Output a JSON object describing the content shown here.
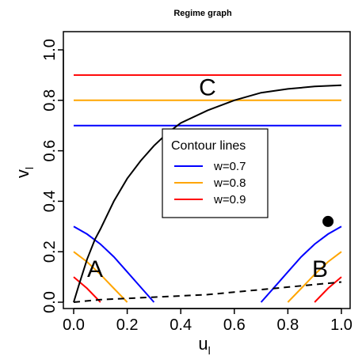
{
  "chart_data": {
    "type": "line",
    "title": "Regime graph",
    "xlabel": "u",
    "xlabel_sub": "l",
    "ylabel": "v",
    "ylabel_sub": "l",
    "xlim": [
      0,
      1
    ],
    "ylim": [
      0,
      1
    ],
    "x_ticks": [
      "0.0",
      "0.2",
      "0.4",
      "0.6",
      "0.8",
      "1.0"
    ],
    "y_ticks": [
      "0.0",
      "0.2",
      "0.4",
      "0.6",
      "0.8",
      "1.0"
    ],
    "grid": false,
    "legend": {
      "title": "Contour lines",
      "placement": "center",
      "entries": [
        {
          "label": "w=0.7",
          "color": "#0000ff"
        },
        {
          "label": "w=0.8",
          "color": "#ffa500"
        },
        {
          "label": "w=0.9",
          "color": "#ff0000"
        }
      ]
    },
    "series": [
      {
        "name": "w=0.7",
        "color": "#0000ff",
        "horizontal_y": 0.7,
        "left_arc": [
          [
            0,
            0.3
          ],
          [
            0.05,
            0.27
          ],
          [
            0.1,
            0.23
          ],
          [
            0.15,
            0.18
          ],
          [
            0.2,
            0.12
          ],
          [
            0.25,
            0.06
          ],
          [
            0.3,
            0.0
          ]
        ],
        "right_arc": [
          [
            0.7,
            0.0
          ],
          [
            0.75,
            0.06
          ],
          [
            0.8,
            0.12
          ],
          [
            0.85,
            0.18
          ],
          [
            0.9,
            0.23
          ],
          [
            0.95,
            0.27
          ],
          [
            1.0,
            0.3
          ]
        ]
      },
      {
        "name": "w=0.8",
        "color": "#ffa500",
        "horizontal_y": 0.8,
        "left_arc": [
          [
            0,
            0.2
          ],
          [
            0.05,
            0.16
          ],
          [
            0.1,
            0.11
          ],
          [
            0.15,
            0.055
          ],
          [
            0.2,
            0.0
          ]
        ],
        "right_arc": [
          [
            0.8,
            0.0
          ],
          [
            0.85,
            0.055
          ],
          [
            0.9,
            0.11
          ],
          [
            0.95,
            0.16
          ],
          [
            1.0,
            0.2
          ]
        ]
      },
      {
        "name": "w=0.9",
        "color": "#ff0000",
        "horizontal_y": 0.9,
        "left_arc": [
          [
            0,
            0.1
          ],
          [
            0.05,
            0.055
          ],
          [
            0.1,
            0.0
          ]
        ],
        "right_arc": [
          [
            0.9,
            0.0
          ],
          [
            0.95,
            0.055
          ],
          [
            1.0,
            0.1
          ]
        ]
      }
    ],
    "boundary_curve": {
      "color": "#000000",
      "points": [
        [
          0.0,
          0.0
        ],
        [
          0.02,
          0.07
        ],
        [
          0.05,
          0.17
        ],
        [
          0.08,
          0.25
        ],
        [
          0.1,
          0.29
        ],
        [
          0.15,
          0.4
        ],
        [
          0.2,
          0.49
        ],
        [
          0.25,
          0.56
        ],
        [
          0.3,
          0.62
        ],
        [
          0.35,
          0.67
        ],
        [
          0.4,
          0.71
        ],
        [
          0.5,
          0.76
        ],
        [
          0.6,
          0.8
        ],
        [
          0.7,
          0.83
        ],
        [
          0.8,
          0.845
        ],
        [
          0.9,
          0.855
        ],
        [
          1.0,
          0.86
        ]
      ]
    },
    "dashed_curve": {
      "color": "#000000",
      "points": [
        [
          0.0,
          0.0
        ],
        [
          0.1,
          0.01
        ],
        [
          0.2,
          0.015
        ],
        [
          0.3,
          0.02
        ],
        [
          0.4,
          0.025
        ],
        [
          0.5,
          0.03
        ],
        [
          0.6,
          0.04
        ],
        [
          0.7,
          0.05
        ],
        [
          0.8,
          0.06
        ],
        [
          0.9,
          0.07
        ],
        [
          1.0,
          0.08
        ]
      ]
    },
    "point": {
      "x": 0.95,
      "y": 0.32,
      "color": "#000000"
    },
    "region_labels": [
      {
        "text": "A",
        "x": 0.08,
        "y": 0.1
      },
      {
        "text": "B",
        "x": 0.92,
        "y": 0.1
      },
      {
        "text": "C",
        "x": 0.5,
        "y": 0.82
      }
    ]
  }
}
